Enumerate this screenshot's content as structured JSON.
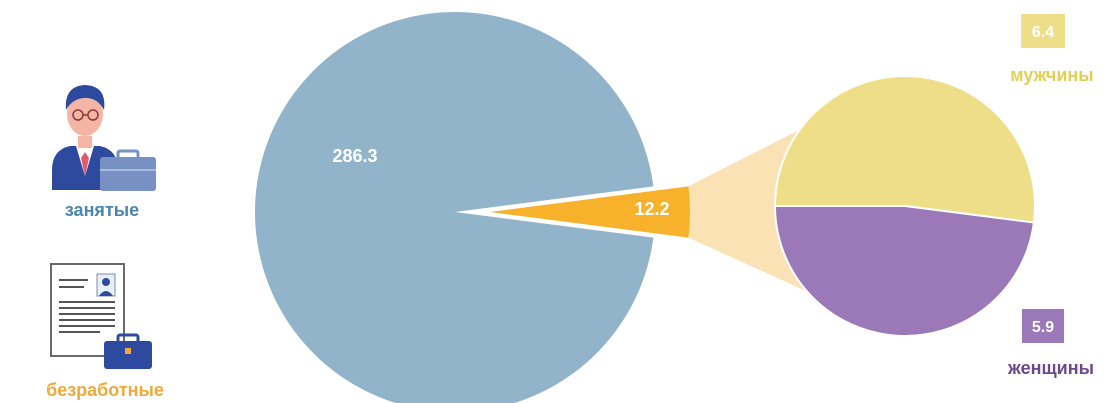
{
  "chart_data": {
    "type": "pie",
    "main": {
      "slices": [
        {
          "name": "занятые",
          "value": 286.3,
          "color": "#92B4CB"
        },
        {
          "name": "безработные",
          "value": 12.2,
          "color": "#F8B12A"
        }
      ]
    },
    "breakdown": {
      "of": "безработные",
      "connector_color": "#FBE2B4",
      "slices": [
        {
          "name": "мужчины",
          "value": 6.4,
          "color": "#EDDE87",
          "label_color": "#E3CE55"
        },
        {
          "name": "женщины",
          "value": 5.9,
          "color": "#9B79B8",
          "label_color": "#6A4A8C"
        }
      ]
    }
  },
  "legend": {
    "employed_label": "занятые",
    "employed_icon": "businessman-icon",
    "employed_color": "#4A86B0",
    "unemployed_label": "безработные",
    "unemployed_icon": "resume-briefcase-icon",
    "unemployed_color": "#F2A93B"
  }
}
